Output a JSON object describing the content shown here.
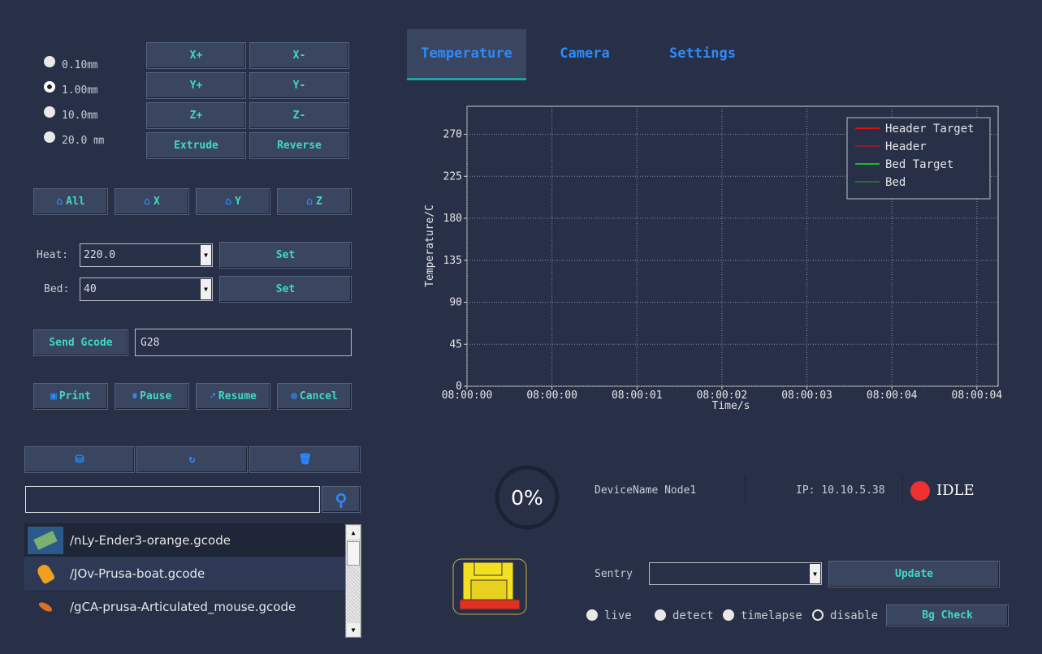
{
  "step_options": [
    "0.10㎜",
    "1.00㎜",
    "10.0㎜",
    "20.0 ㎜"
  ],
  "jog_buttons": [
    "X+",
    "X-",
    "Y+",
    "Y-",
    "Z+",
    "Z-",
    "Extrude",
    "Reverse"
  ],
  "home_buttons": [
    "All",
    "X",
    "Y",
    "Z"
  ],
  "heat": {
    "label": "Heat:",
    "value": "220.0",
    "button": "Set"
  },
  "bed": {
    "label": "Bed:",
    "value": "40",
    "button": "Set"
  },
  "gcode": {
    "button": "Send Gcode",
    "value": "G28"
  },
  "print_buttons": [
    "Print",
    "Pause",
    "Resume",
    "Cancel"
  ],
  "files": [
    "/nLy-Ender3-orange.gcode",
    "/JOv-Prusa-boat.gcode",
    "/gCA-prusa-Articulated_mouse.gcode"
  ],
  "tabs": [
    "Temperature",
    "Camera",
    "Settings"
  ],
  "chart_data": {
    "type": "line",
    "xlabel": "Time/s",
    "ylabel": "Temperature/C",
    "xlim": [
      0,
      5
    ],
    "xticks": [
      {
        "value": 0,
        "label": "08:00:00"
      },
      {
        "value": 0.8,
        "label": "08:00:00"
      },
      {
        "value": 1.6,
        "label": "08:00:01"
      },
      {
        "value": 2.4,
        "label": "08:00:02"
      },
      {
        "value": 3.2,
        "label": "08:00:03"
      },
      {
        "value": 4.0,
        "label": "08:00:04"
      },
      {
        "value": 4.8,
        "label": "08:00:04"
      }
    ],
    "ylim": [
      0,
      300
    ],
    "yticks": [
      0,
      45,
      90,
      135,
      180,
      225,
      270
    ],
    "grid": true,
    "legend": "upper right",
    "series": [
      {
        "name": "Header Target",
        "color": "#e01010",
        "values": []
      },
      {
        "name": "Header",
        "color": "#8a2228",
        "values": []
      },
      {
        "name": "Bed Target",
        "color": "#10c020",
        "values": []
      },
      {
        "name": "Bed",
        "color": "#2a6a3c",
        "values": []
      }
    ]
  },
  "status": {
    "progress": "0%",
    "device": "DeviceName Node1",
    "ip": "IP: 10.10.5.38",
    "state": "IDLE"
  },
  "sentry": {
    "label": "Sentry",
    "button": "Update",
    "modes": [
      "live",
      "detect",
      "timelapse",
      "disable"
    ],
    "check": "Bg Check"
  }
}
